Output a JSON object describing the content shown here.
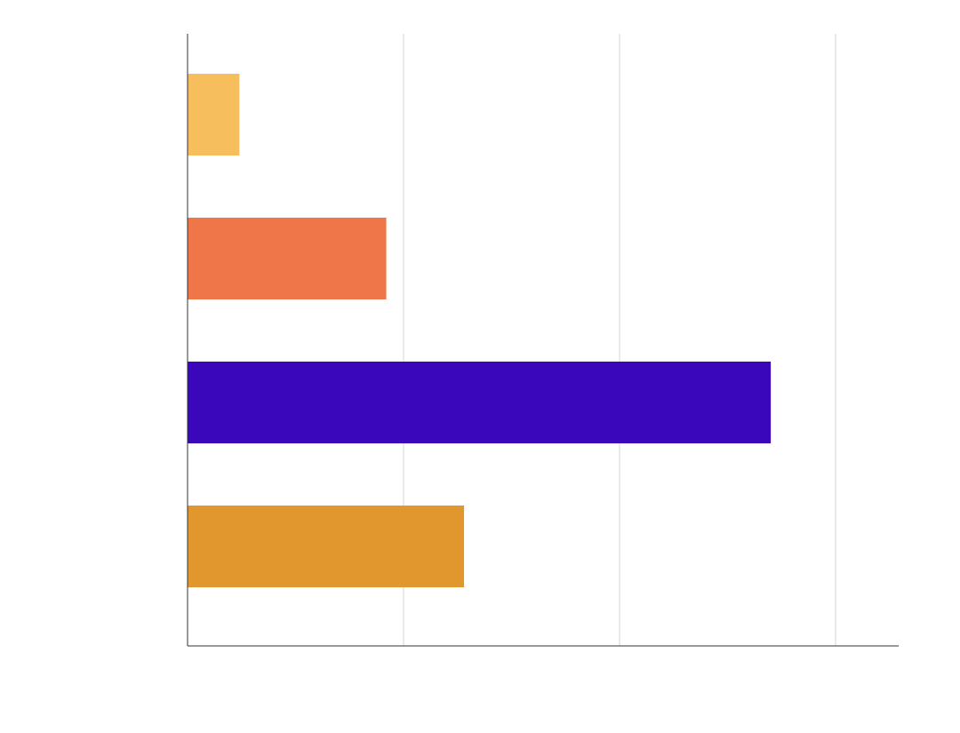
{
  "chart_data": {
    "type": "bar",
    "orientation": "horizontal",
    "categories": [
      "",
      "",
      "",
      ""
    ],
    "values": [
      0.24,
      0.92,
      2.7,
      1.28
    ],
    "colors": [
      "#F6BE5C",
      "#EE7649",
      "#3A07BA",
      "#E1972E"
    ],
    "title": "",
    "xlabel": "",
    "ylabel": "",
    "xlim": [
      0,
      3.3
    ],
    "xticks": [
      1,
      2,
      3
    ],
    "grid": true,
    "legend": "none"
  }
}
